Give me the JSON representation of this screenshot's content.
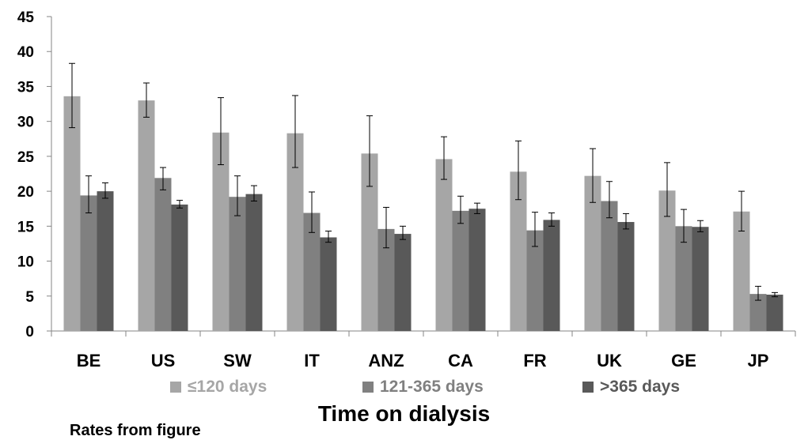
{
  "chart_data": {
    "type": "bar",
    "categories": [
      "BE",
      "US",
      "SW",
      "IT",
      "ANZ",
      "CA",
      "FR",
      "UK",
      "GE",
      "JP"
    ],
    "series": [
      {
        "name": "≤120 days",
        "color": "#a6a6a6",
        "values": [
          33.6,
          33.0,
          28.4,
          28.3,
          25.4,
          24.6,
          22.8,
          22.2,
          20.1,
          17.1
        ],
        "err_low": [
          29.1,
          30.6,
          23.8,
          23.4,
          20.7,
          21.7,
          18.8,
          18.4,
          16.4,
          14.3
        ],
        "err_high": [
          38.3,
          35.5,
          33.4,
          33.7,
          30.8,
          27.8,
          27.2,
          26.1,
          24.1,
          20.0
        ]
      },
      {
        "name": "121-365 days",
        "color": "#808080",
        "values": [
          19.4,
          21.9,
          19.2,
          16.9,
          14.6,
          17.2,
          14.4,
          18.6,
          15.0,
          5.3
        ],
        "err_low": [
          16.9,
          20.2,
          16.5,
          14.1,
          11.9,
          15.4,
          12.1,
          16.2,
          12.7,
          4.4
        ],
        "err_high": [
          22.2,
          23.4,
          22.2,
          19.9,
          17.7,
          19.3,
          17.0,
          21.4,
          17.4,
          6.4
        ]
      },
      {
        "name": ">365 days",
        "color": "#595959",
        "values": [
          20.0,
          18.1,
          19.6,
          13.4,
          13.9,
          17.5,
          15.9,
          15.6,
          14.9,
          5.2
        ],
        "err_low": [
          19.0,
          17.6,
          18.6,
          12.7,
          13.1,
          16.8,
          15.0,
          14.6,
          14.2,
          4.9
        ],
        "err_high": [
          21.2,
          18.7,
          20.8,
          14.3,
          15.0,
          18.3,
          16.9,
          16.8,
          15.8,
          5.5
        ]
      }
    ],
    "yticks": [
      "0",
      "5",
      "10",
      "15",
      "20",
      "25",
      "30",
      "35",
      "40",
      "45"
    ],
    "ylim": [
      0,
      45
    ],
    "xlabel": "Time on dialysis",
    "ylabel": "",
    "title": "",
    "legend_position": "bottom",
    "grid": false
  },
  "footnote": "Rates from figure"
}
